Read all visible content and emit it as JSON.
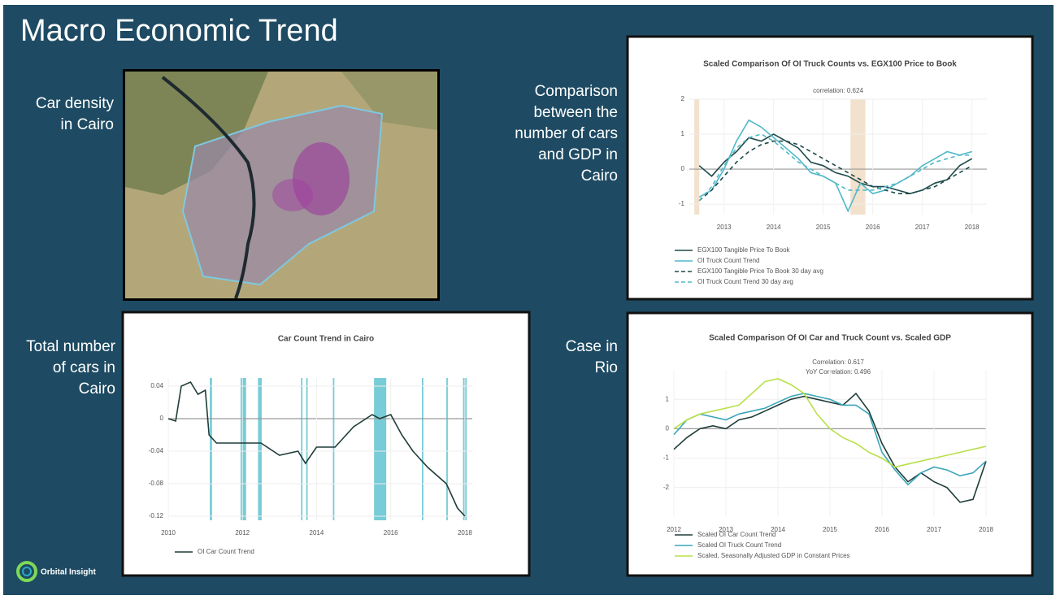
{
  "slide": {
    "title": "Macro Economic Trend",
    "labels": [
      [
        "Car density",
        "in Cairo"
      ],
      [
        "Comparison",
        "between the",
        "number of cars",
        "and GDP in",
        "Cairo"
      ],
      [
        "Total number",
        "of cars in",
        "Cairo"
      ],
      [
        "Case in",
        "Rio"
      ]
    ],
    "logo": "Orbital Insight"
  },
  "chart_data": [
    {
      "type": "line",
      "title": "Car Count Trend in Cairo",
      "x": [
        2010,
        2010.2,
        2010.35,
        2010.6,
        2010.8,
        2011.0,
        2011.1,
        2011.3,
        2012,
        2012.5,
        2013,
        2013.5,
        2013.7,
        2014,
        2014.5,
        2015,
        2015.5,
        2015.7,
        2016,
        2016.3,
        2016.6,
        2017,
        2017.5,
        2017.8,
        2018
      ],
      "series": [
        {
          "name": "OI Car Count Trend",
          "color": "#1f3d3a",
          "values": [
            0,
            -0.003,
            0.04,
            0.045,
            0.03,
            0.035,
            -0.02,
            -0.03,
            -0.03,
            -0.03,
            -0.045,
            -0.04,
            -0.055,
            -0.035,
            -0.035,
            -0.01,
            0.005,
            0,
            0.005,
            -0.02,
            -0.04,
            -0.06,
            -0.08,
            -0.11,
            -0.12
          ]
        }
      ],
      "bands": [
        [
          2011.12,
          2011.18
        ],
        [
          2011.95,
          2012.1
        ],
        [
          2012.42,
          2012.52
        ],
        [
          2013.58,
          2013.62
        ],
        [
          2013.72,
          2013.76
        ],
        [
          2014.44,
          2014.48
        ],
        [
          2015.55,
          2015.88
        ],
        [
          2016.84,
          2016.88
        ],
        [
          2017.5,
          2017.54
        ],
        [
          2017.95,
          2018.05
        ]
      ],
      "band_color": "#5fc3d0",
      "xlim": [
        2010,
        2018.2
      ],
      "xticks": [
        2010,
        2012,
        2014,
        2016,
        2018
      ],
      "ylim": [
        -0.125,
        0.05
      ],
      "yticks": [
        0.04,
        0,
        -0.04,
        -0.08,
        -0.12
      ]
    },
    {
      "type": "line",
      "title": "Scaled Comparison Of OI Truck Counts vs. EGX100 Price to Book",
      "annotations": [
        "correlation: 0.624"
      ],
      "x": [
        2012.5,
        2012.75,
        2013,
        2013.25,
        2013.5,
        2013.75,
        2014,
        2014.25,
        2014.5,
        2014.75,
        2015,
        2015.25,
        2015.5,
        2015.75,
        2016,
        2016.25,
        2016.5,
        2016.75,
        2017,
        2017.25,
        2017.5,
        2017.75,
        2018
      ],
      "series": [
        {
          "name": "EGX100 Tangible Price To Book",
          "color": "#1f4a4a",
          "values": [
            0.1,
            -0.2,
            0.2,
            0.5,
            0.9,
            0.8,
            1.0,
            0.8,
            0.6,
            0.2,
            0.1,
            -0.1,
            -0.2,
            -0.4,
            -0.5,
            -0.5,
            -0.6,
            -0.7,
            -0.6,
            -0.4,
            -0.3,
            0.1,
            0.3
          ]
        },
        {
          "name": "OI Truck Count Trend",
          "color": "#4fb8c8",
          "values": [
            -0.8,
            -0.6,
            0.0,
            0.8,
            1.4,
            1.2,
            0.9,
            0.6,
            0.3,
            -0.1,
            -0.2,
            -0.4,
            -1.2,
            -0.4,
            -0.7,
            -0.6,
            -0.4,
            -0.2,
            0.1,
            0.3,
            0.5,
            0.4,
            0.5
          ]
        },
        {
          "name": "EGX100 Tangible Price To Book 30 day avg",
          "color": "#1f4a4a",
          "dash": true,
          "values": [
            -0.9,
            -0.6,
            -0.2,
            0.2,
            0.5,
            0.7,
            0.8,
            0.8,
            0.7,
            0.5,
            0.3,
            0.1,
            -0.1,
            -0.3,
            -0.5,
            -0.6,
            -0.7,
            -0.7,
            -0.6,
            -0.5,
            -0.3,
            -0.1,
            0.1
          ]
        },
        {
          "name": "OI Truck Count Trend 30 day avg",
          "color": "#4fb8c8",
          "dash": true,
          "values": [
            -0.9,
            -0.5,
            0.1,
            0.6,
            0.9,
            1.0,
            0.8,
            0.5,
            0.2,
            0,
            -0.2,
            -0.4,
            -0.6,
            -0.6,
            -0.6,
            -0.5,
            -0.4,
            -0.2,
            0,
            0.2,
            0.3,
            0.4,
            0.4
          ]
        }
      ],
      "bands": [
        [
          2012.4,
          2012.5
        ],
        [
          2015.55,
          2015.85
        ]
      ],
      "band_color": "#f0dcc4",
      "xlim": [
        2012.3,
        2018.3
      ],
      "xticks": [
        2013,
        2014,
        2015,
        2016,
        2017,
        2018
      ],
      "ylim": [
        -1.3,
        2
      ],
      "yticks": [
        2,
        1,
        0,
        -1
      ]
    },
    {
      "type": "line",
      "title": "Scaled Comparison Of OI Car and Truck Count vs. Scaled GDP",
      "annotations": [
        "Correlation: 0.617",
        "YoY Correlation: 0.496"
      ],
      "x": [
        2012,
        2012.25,
        2012.5,
        2012.75,
        2013,
        2013.25,
        2013.5,
        2013.75,
        2014,
        2014.25,
        2014.5,
        2014.75,
        2015,
        2015.25,
        2015.5,
        2015.75,
        2016,
        2016.25,
        2016.5,
        2016.75,
        2017,
        2017.25,
        2017.5,
        2017.75,
        2018
      ],
      "series": [
        {
          "name": "Scaled OI Car Count Trend",
          "color": "#1f3d3a",
          "values": [
            -0.7,
            -0.3,
            0,
            0.1,
            0,
            0.3,
            0.4,
            0.6,
            0.8,
            1.0,
            1.1,
            1.0,
            0.9,
            0.8,
            1.2,
            0.6,
            -0.5,
            -1.3,
            -1.8,
            -1.5,
            -1.8,
            -2.0,
            -2.5,
            -2.4,
            -1.1
          ]
        },
        {
          "name": "Scaled OI Truck Count Trend",
          "color": "#3aa6b8",
          "values": [
            -0.2,
            0.3,
            0.5,
            0.4,
            0.3,
            0.5,
            0.6,
            0.7,
            0.9,
            1.1,
            1.2,
            1.1,
            1.0,
            0.8,
            0.8,
            0.5,
            -0.8,
            -1.4,
            -1.9,
            -1.5,
            -1.3,
            -1.4,
            -1.6,
            -1.5,
            -1.1
          ]
        },
        {
          "name": "Scaled, Seasonally Adjusted GDP in Constant Prices",
          "color": "#b8e04a",
          "values": [
            0,
            0.3,
            0.5,
            0.6,
            0.7,
            0.8,
            1.2,
            1.6,
            1.7,
            1.5,
            1.2,
            0.5,
            0,
            -0.3,
            -0.5,
            -0.8,
            -1.0,
            -1.3,
            -1.2,
            -1.1,
            -1.0,
            -0.9,
            -0.8,
            -0.7,
            -0.6
          ]
        }
      ],
      "xlim": [
        2012,
        2018
      ],
      "xticks": [
        2012,
        2013,
        2014,
        2015,
        2016,
        2017,
        2018
      ],
      "ylim": [
        -3,
        2
      ],
      "yticks": [
        1,
        0,
        -1,
        -2
      ]
    }
  ]
}
